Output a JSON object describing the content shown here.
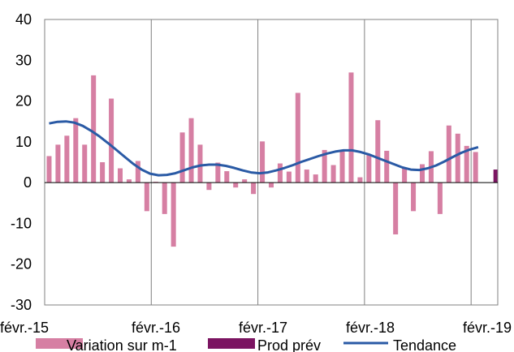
{
  "chart_data": {
    "type": "bar",
    "title": "",
    "xlabel": "",
    "ylabel": "",
    "ylim": [
      -30,
      40
    ],
    "y_ticks": [
      40,
      30,
      20,
      10,
      0,
      -10,
      -20,
      -30
    ],
    "x_tick_labels": [
      "févr.-15",
      "févr.-16",
      "févr.-17",
      "févr.-18",
      "févr.-19"
    ],
    "grid": "vertical lines at each year",
    "legend_position": "bottom",
    "colors": {
      "variation": "#d67fa3",
      "prod": "#7b1461",
      "tendance": "#2a5aa5",
      "grid": "#808080"
    },
    "series": [
      {
        "name": "Variation sur m-1",
        "type": "bar",
        "values": [
          6.5,
          9.3,
          11.5,
          15.8,
          9.3,
          26.3,
          5.0,
          20.6,
          3.5,
          0.8,
          5.3,
          -7.0,
          0.2,
          -7.7,
          -15.7,
          12.3,
          15.8,
          9.3,
          -1.8,
          4.9,
          2.8,
          -1.2,
          0.8,
          -2.8,
          10.1,
          -1.2,
          4.7,
          2.7,
          22.0,
          3.2,
          2.0,
          8.0,
          4.3,
          7.8,
          27.0,
          1.3,
          7.0,
          15.3,
          7.8,
          -12.7,
          3.5,
          -7.0,
          4.5,
          7.7,
          -7.7,
          14.0,
          12.0,
          9.0,
          7.5
        ]
      },
      {
        "name": "Prod prév",
        "type": "bar",
        "values": [
          3.2
        ]
      },
      {
        "name": "Tendance",
        "type": "line",
        "values": [
          14.5,
          14.9,
          15.0,
          14.7,
          13.9,
          12.7,
          11.3,
          9.7,
          8.0,
          6.3,
          4.6,
          3.2,
          2.2,
          1.8,
          1.9,
          2.3,
          3.0,
          3.7,
          4.2,
          4.4,
          4.4,
          4.1,
          3.6,
          3.0,
          2.5,
          2.3,
          2.5,
          3.0,
          3.6,
          4.3,
          5.1,
          5.8,
          6.5,
          7.1,
          7.6,
          7.9,
          7.9,
          7.5,
          6.9,
          6.1,
          5.3,
          4.5,
          3.7,
          3.2,
          3.1,
          3.5,
          4.2,
          5.2,
          6.3,
          7.3,
          8.1,
          8.7
        ]
      }
    ]
  }
}
